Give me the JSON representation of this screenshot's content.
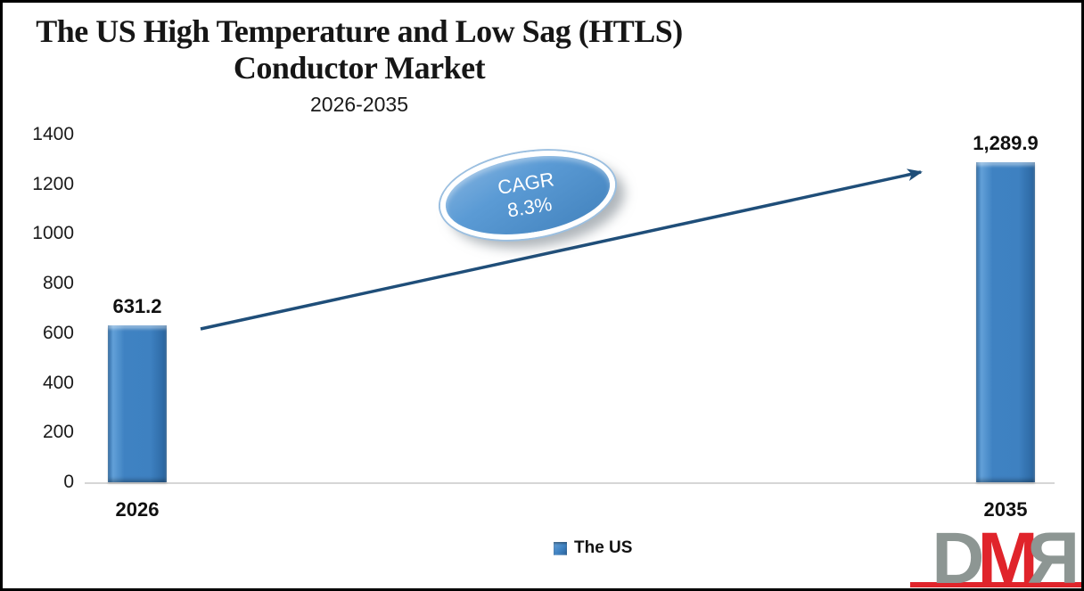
{
  "title": {
    "line1": "The US High Temperature and Low Sag (HTLS)",
    "line2": "Conductor Market",
    "subtitle": "2026-2035"
  },
  "annotation": {
    "line1": "CAGR",
    "line2": "8.3%"
  },
  "legend": {
    "label": "The US"
  },
  "logo": {
    "letters": {
      "d": "D",
      "m": "M",
      "r": "R"
    },
    "gray": "#8d9693",
    "red": "#e0242b"
  },
  "colors": {
    "bar": "#3f82c2",
    "arrow": "#1f4e79",
    "axis_line": "#d6d6d6",
    "ellipse_fill": "#5b9bd5"
  },
  "chart_data": {
    "type": "bar",
    "categories": [
      "2026",
      "2035"
    ],
    "series": [
      {
        "name": "The US",
        "values": [
          631.2,
          1289.9
        ]
      }
    ],
    "value_labels": [
      "631.2",
      "1,289.9"
    ],
    "title": "The US High Temperature and Low Sag (HTLS) Conductor Market",
    "subtitle": "2026-2035",
    "xlabel": "",
    "ylabel": "",
    "ylim": [
      0,
      1400
    ],
    "yticks": [
      0,
      200,
      400,
      600,
      800,
      1000,
      1200,
      1400
    ],
    "grid": false,
    "legend_position": "bottom",
    "annotation": "CAGR 8.3%"
  }
}
